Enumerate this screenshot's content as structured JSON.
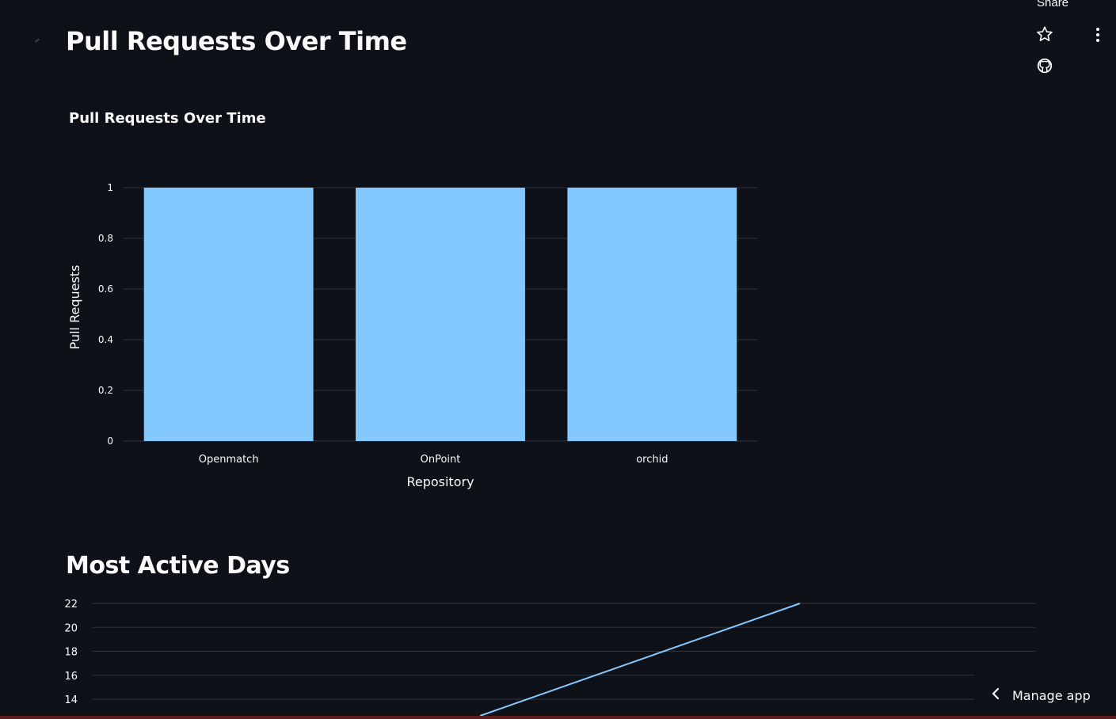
{
  "toolbar": {
    "share_label": "Share",
    "star_icon": "star-icon",
    "github_icon": "github-icon",
    "menu_icon": "kebab-menu-icon"
  },
  "page": {
    "title": "Pull Requests Over Time",
    "section_title": "Most Active Days"
  },
  "manage_app": {
    "label": "Manage app",
    "icon": "chevron-left-icon"
  },
  "colors": {
    "background": "#0e1117",
    "bar": "#83c9ff",
    "line": "#83c9ff",
    "grid": "#31333f",
    "text": "#fafafa"
  },
  "chart_data": [
    {
      "type": "bar",
      "title": "Pull Requests Over Time",
      "categories": [
        "Openmatch",
        "OnPoint",
        "orchid"
      ],
      "values": [
        1,
        1,
        1
      ],
      "xlabel": "Repository",
      "ylabel": "Pull Requests",
      "ylim": [
        0,
        1
      ],
      "yticks": [
        0,
        0.2,
        0.4,
        0.6,
        0.8,
        1
      ],
      "ytick_labels": [
        "0",
        "0.2",
        "0.4",
        "0.6",
        "0.8",
        "1"
      ],
      "grid": true
    },
    {
      "type": "line",
      "yticks": [
        14,
        16,
        18,
        20,
        22
      ],
      "ytick_labels": [
        "14",
        "16",
        "18",
        "20",
        "22"
      ],
      "grid": true
    }
  ]
}
